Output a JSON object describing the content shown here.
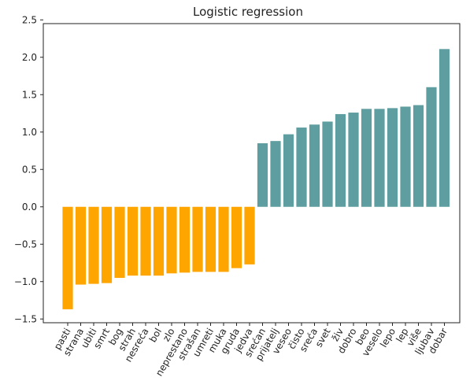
{
  "colors": {
    "negative": "#FFA500",
    "positive": "#5F9EA0",
    "axis": "#222222",
    "background": "#FFFFFF"
  },
  "chart_data": {
    "type": "bar",
    "title": "Logistic regression",
    "xlabel": "",
    "ylabel": "",
    "ylim": [
      -1.55,
      2.45
    ],
    "yticks": [
      -1.5,
      -1.0,
      -0.5,
      0.0,
      0.5,
      1.0,
      1.5,
      2.0,
      2.5
    ],
    "ytick_labels": [
      "−1.5",
      "−1.0",
      "−0.5",
      "0.0",
      "0.5",
      "1.0",
      "1.5",
      "2.0",
      "2.5"
    ],
    "grid": false,
    "legend": "none",
    "categories": [
      "pasti",
      "strana",
      "ubiti",
      "smrt",
      "bog",
      "strah",
      "nesreća",
      "bol",
      "zlo",
      "neprestano",
      "strašan",
      "umreti",
      "muka",
      "gruda",
      "jedva",
      "srećan",
      "prijatelj",
      "veseo",
      "čisto",
      "sreća",
      "svet",
      "živ",
      "dobro",
      "beo",
      "veselo",
      "lepo",
      "lep",
      "više",
      "ljubav",
      "dobar"
    ],
    "values": [
      -1.37,
      -1.04,
      -1.03,
      -1.02,
      -0.95,
      -0.92,
      -0.92,
      -0.92,
      -0.89,
      -0.88,
      -0.87,
      -0.87,
      -0.87,
      -0.82,
      -0.77,
      0.85,
      0.88,
      0.97,
      1.06,
      1.1,
      1.14,
      1.24,
      1.26,
      1.31,
      1.31,
      1.32,
      1.34,
      1.36,
      1.6,
      2.11
    ]
  }
}
